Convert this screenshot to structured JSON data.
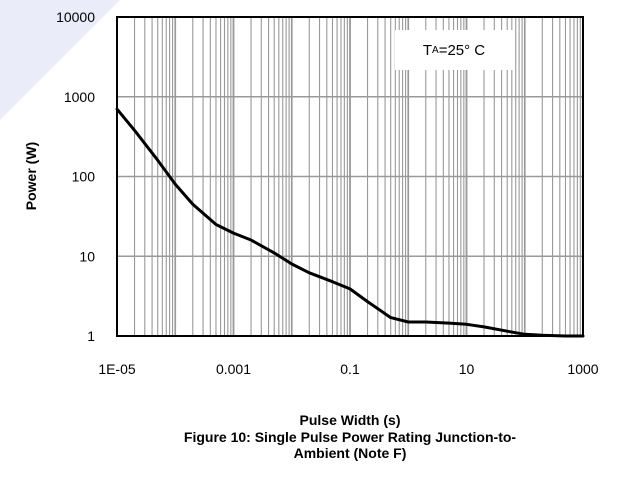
{
  "chart_data": {
    "type": "line",
    "title": "",
    "xlabel": "Pulse Width (s)",
    "ylabel": "Power (W)",
    "xscale": "log",
    "yscale": "log",
    "xlim": [
      1e-05,
      1000
    ],
    "ylim": [
      1,
      10000
    ],
    "xticks": [
      "1E-05",
      "0.001",
      "0.1",
      "10",
      "1000"
    ],
    "yticks": [
      "10000",
      "1000",
      "100",
      "10",
      "1"
    ],
    "grid": true,
    "series": [
      {
        "x": [
          1e-05,
          2e-05,
          5e-05,
          0.0001,
          0.0002,
          0.0005,
          0.001,
          0.002,
          0.005,
          0.01,
          0.02,
          0.05,
          0.1,
          0.2,
          0.5,
          1,
          2,
          5,
          10,
          20,
          50,
          100,
          200,
          500,
          1000
        ],
        "y": [
          700,
          380,
          160,
          80,
          45,
          25,
          19.5,
          16,
          11,
          8,
          6.2,
          4.8,
          3.9,
          2.7,
          1.7,
          1.5,
          1.5,
          1.45,
          1.4,
          1.3,
          1.15,
          1.05,
          1.02,
          1.0,
          1.0
        ]
      }
    ],
    "annotation": {
      "main": "T",
      "sub": "A",
      "tail": "=25° C"
    }
  },
  "caption": {
    "line1": "Figure 10: Single Pulse Power Rating Junction-to-",
    "line2": "Ambient (Note F)"
  },
  "colors": {
    "grid": "#999999",
    "line": "#000000",
    "watermark": "#d9dcf5"
  }
}
